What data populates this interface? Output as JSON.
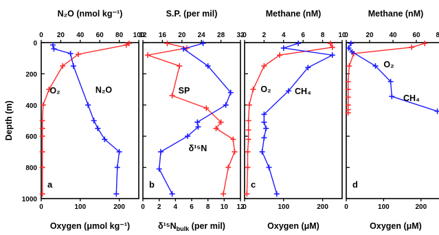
{
  "y_axis": {
    "label": "Depth (m)",
    "ticks": [
      0,
      200,
      400,
      600,
      800,
      1000
    ],
    "range": [
      0,
      1000
    ],
    "inverted": true
  },
  "colors": {
    "red": "#ff2a2a",
    "blue": "#1a1aff",
    "axis": "#000000"
  },
  "chart_data": [
    {
      "type": "line",
      "panel_letter": "a",
      "top_axis": {
        "label": "N₂O (nmol kg⁻¹)",
        "range": [
          0,
          100
        ],
        "ticks": [
          0,
          20,
          40,
          60,
          80,
          100
        ]
      },
      "bottom_axis": {
        "label": "Oxygen (μmol kg⁻¹)",
        "range": [
          0,
          250
        ],
        "ticks": [
          0,
          100,
          200
        ]
      },
      "series": [
        {
          "name": "O2",
          "label": "O₂",
          "color": "#ff2a2a",
          "axis": "bottom",
          "points": [
            [
              225,
              5
            ],
            [
              218,
              15
            ],
            [
              95,
              75
            ],
            [
              55,
              150
            ],
            [
              20,
              300
            ],
            [
              5,
              400
            ],
            [
              3,
              500
            ],
            [
              3,
              550
            ],
            [
              3,
              600
            ],
            [
              3,
              700
            ],
            [
              3,
              800
            ],
            [
              3,
              970
            ]
          ]
        },
        {
          "name": "N2O",
          "label": "N₂O",
          "color": "#1a1aff",
          "axis": "top",
          "points": [
            [
              12,
              15
            ],
            [
              13,
              40
            ],
            [
              30,
              70
            ],
            [
              33,
              150
            ],
            [
              48,
              400
            ],
            [
              54,
              500
            ],
            [
              58,
              550
            ],
            [
              65,
              620
            ],
            [
              80,
              700
            ],
            [
              78,
              800
            ],
            [
              77,
              970
            ]
          ]
        }
      ]
    },
    {
      "type": "line",
      "panel_letter": "b",
      "top_axis": {
        "label": "S.P. (per mil)",
        "range": [
          12,
          32
        ],
        "ticks": [
          12,
          16,
          20,
          24,
          28,
          32
        ]
      },
      "bottom_axis": {
        "label": "δ¹⁵N_bulk (per mil)",
        "range": [
          0,
          12
        ],
        "ticks": [
          0,
          2,
          4,
          6,
          8,
          10,
          12
        ]
      },
      "series": [
        {
          "name": "SP",
          "label": "SP",
          "color": "#ff2a2a",
          "axis": "top",
          "points": [
            [
              17,
              5
            ],
            [
              21,
              35
            ],
            [
              13,
              80
            ],
            [
              19.5,
              150
            ],
            [
              18,
              340
            ],
            [
              25,
              420
            ],
            [
              28,
              510
            ],
            [
              27,
              550
            ],
            [
              30.5,
              620
            ],
            [
              30.8,
              700
            ],
            [
              29.5,
              800
            ],
            [
              28.5,
              970
            ]
          ]
        },
        {
          "name": "δ15N",
          "label": "δ¹⁵N",
          "color": "#1a1aff",
          "axis": "bottom",
          "points": [
            [
              7.4,
              5
            ],
            [
              5,
              40
            ],
            [
              8,
              150
            ],
            [
              10.8,
              320
            ],
            [
              10.2,
              400
            ],
            [
              6.7,
              510
            ],
            [
              6.8,
              540
            ],
            [
              5.5,
              600
            ],
            [
              2.2,
              700
            ],
            [
              2,
              810
            ],
            [
              3.6,
              970
            ]
          ]
        }
      ]
    },
    {
      "type": "line",
      "panel_letter": "c",
      "top_axis": {
        "label": "Methane (nM)",
        "range": [
          0,
          10
        ],
        "ticks": [
          0,
          2,
          4,
          6,
          8,
          10
        ]
      },
      "bottom_axis": {
        "label": "Oxygen (μM)",
        "range": [
          0,
          250
        ],
        "ticks": [
          0,
          100,
          200
        ]
      },
      "series": [
        {
          "name": "O2",
          "label": "O₂",
          "color": "#ff2a2a",
          "axis": "bottom",
          "points": [
            [
              220,
              5
            ],
            [
              225,
              30
            ],
            [
              90,
              80
            ],
            [
              50,
              150
            ],
            [
              22,
              300
            ],
            [
              12,
              400
            ],
            [
              10,
              500
            ],
            [
              10,
              560
            ],
            [
              10,
              620
            ],
            [
              8,
              700
            ],
            [
              8,
              800
            ],
            [
              6,
              970
            ]
          ]
        },
        {
          "name": "CH4",
          "label": "CH₄",
          "color": "#1a1aff",
          "axis": "top",
          "points": [
            [
              5.5,
              5
            ],
            [
              4,
              35
            ],
            [
              9,
              80
            ],
            [
              6.5,
              160
            ],
            [
              4.5,
              310
            ],
            [
              2,
              460
            ],
            [
              2,
              510
            ],
            [
              2.2,
              550
            ],
            [
              2,
              610
            ],
            [
              1.8,
              700
            ],
            [
              2.5,
              800
            ],
            [
              3.3,
              970
            ]
          ]
        }
      ]
    },
    {
      "type": "line",
      "panel_letter": "d",
      "top_axis": {
        "label": "Methane (nM)",
        "range": [
          0,
          80
        ],
        "ticks": [
          0,
          20,
          40,
          60,
          80
        ]
      },
      "bottom_axis": {
        "label": "Oxygen (μM)",
        "range": [
          0,
          250
        ],
        "ticks": [
          0,
          100,
          200
        ]
      },
      "series": [
        {
          "name": "O2",
          "label": "O₂",
          "color": "#ff2a2a",
          "axis": "bottom",
          "points": [
            [
              210,
              5
            ],
            [
              175,
              30
            ],
            [
              20,
              70
            ],
            [
              8,
              150
            ],
            [
              5,
              250
            ],
            [
              5,
              300
            ],
            [
              5,
              350
            ],
            [
              5,
              400
            ],
            [
              5,
              430
            ],
            [
              5,
              450
            ]
          ]
        },
        {
          "name": "CH4",
          "label": "CH₄",
          "color": "#1a1aff",
          "axis": "top",
          "points": [
            [
              4,
              5
            ],
            [
              2,
              35
            ],
            [
              5,
              60
            ],
            [
              25,
              150
            ],
            [
              38,
              250
            ],
            [
              39,
              345
            ],
            [
              78,
              440
            ]
          ]
        }
      ]
    }
  ]
}
